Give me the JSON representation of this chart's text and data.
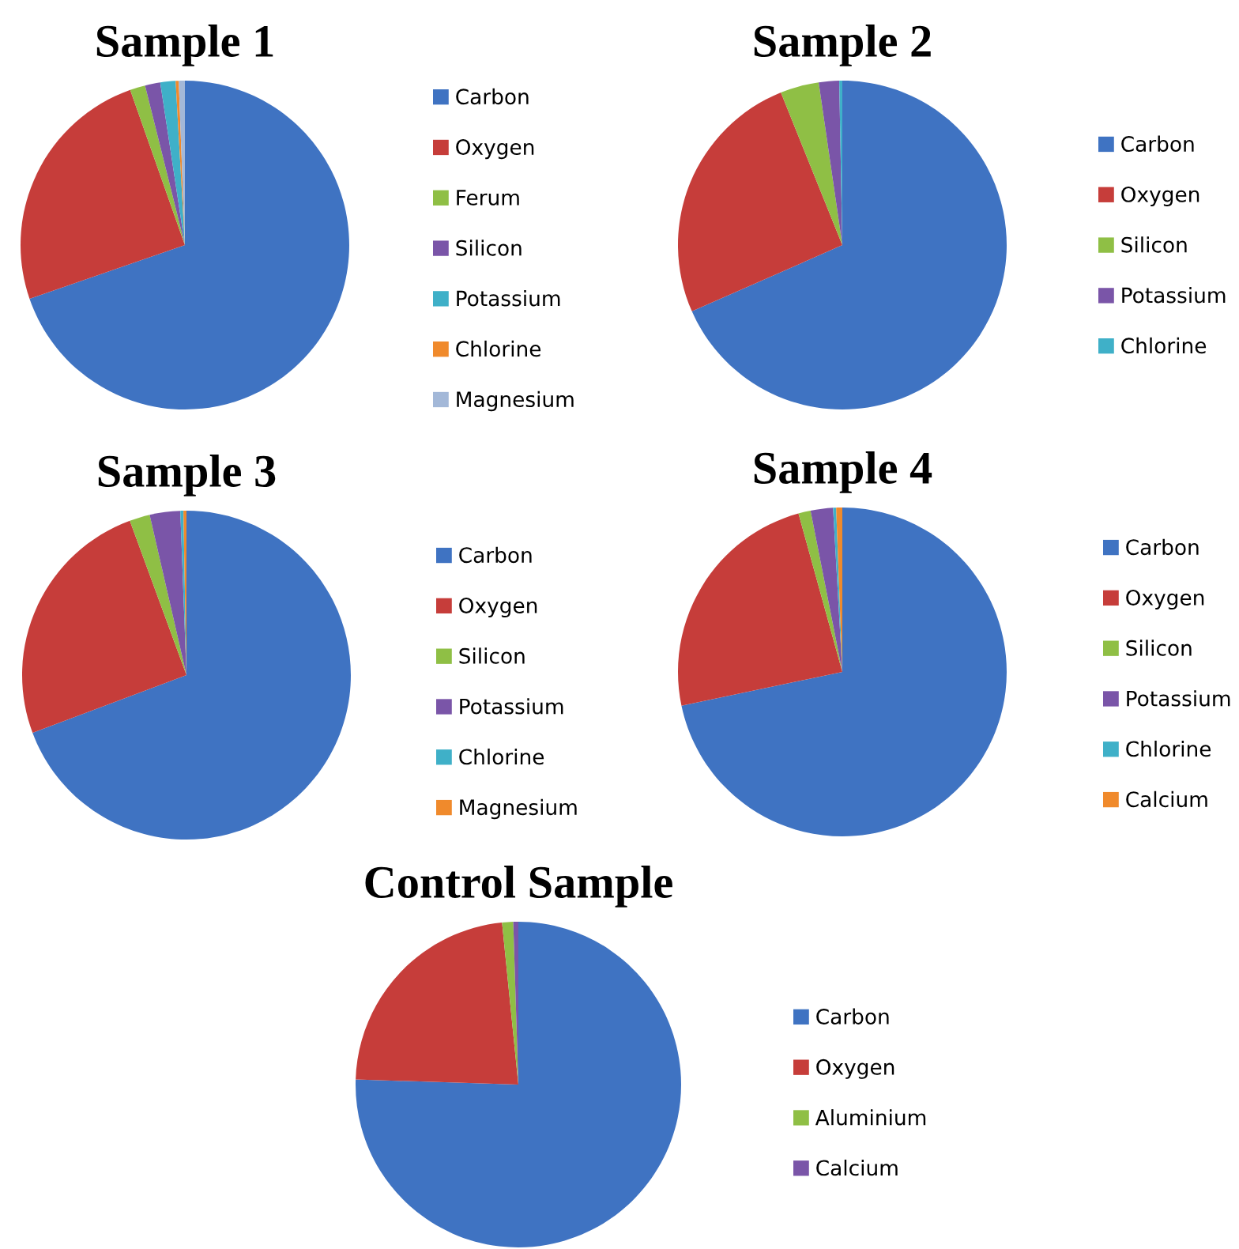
{
  "chart_data": [
    {
      "type": "pie",
      "title": "Sample 1",
      "categories": [
        "Carbon",
        "Oxygen",
        "Ferum",
        "Silicon",
        "Potassium",
        "Chlorine",
        "Magnesium"
      ],
      "values": [
        69.7,
        24.9,
        1.5,
        1.5,
        1.5,
        0.3,
        0.6
      ],
      "colors": [
        "#3f73c2",
        "#c63d3a",
        "#8fbf45",
        "#7a55a8",
        "#3fb0c8",
        "#f08a2c",
        "#a3b8d8"
      ],
      "legend": "right"
    },
    {
      "type": "pie",
      "title": "Sample 2",
      "categories": [
        "Carbon",
        "Oxygen",
        "Silicon",
        "Potassium",
        "Chlorine"
      ],
      "values": [
        68.4,
        25.5,
        3.8,
        2.0,
        0.3
      ],
      "colors": [
        "#3f73c2",
        "#c63d3a",
        "#8fbf45",
        "#7a55a8",
        "#3fb0c8"
      ],
      "legend": "right"
    },
    {
      "type": "pie",
      "title": "Sample 3",
      "categories": [
        "Carbon",
        "Oxygen",
        "Silicon",
        "Potassium",
        "Chlorine",
        "Magnesium"
      ],
      "values": [
        69.3,
        25.1,
        2.0,
        3.0,
        0.3,
        0.3
      ],
      "colors": [
        "#3f73c2",
        "#c63d3a",
        "#8fbf45",
        "#7a55a8",
        "#3fb0c8",
        "#f08a2c"
      ],
      "legend": "right"
    },
    {
      "type": "pie",
      "title": "Sample 4",
      "categories": [
        "Carbon",
        "Oxygen",
        "Silicon",
        "Potassium",
        "Chlorine",
        "Calcium"
      ],
      "values": [
        71.7,
        24.0,
        1.2,
        2.2,
        0.3,
        0.6
      ],
      "colors": [
        "#3f73c2",
        "#c63d3a",
        "#8fbf45",
        "#7a55a8",
        "#3fb0c8",
        "#f08a2c"
      ],
      "legend": "right"
    },
    {
      "type": "pie",
      "title": "Control Sample",
      "categories": [
        "Carbon",
        "Oxygen",
        "Aluminium",
        "Calcium"
      ],
      "values": [
        75.5,
        22.9,
        1.1,
        0.5
      ],
      "colors": [
        "#3f73c2",
        "#c63d3a",
        "#8fbf45",
        "#7a55a8"
      ],
      "legend": "right"
    }
  ]
}
